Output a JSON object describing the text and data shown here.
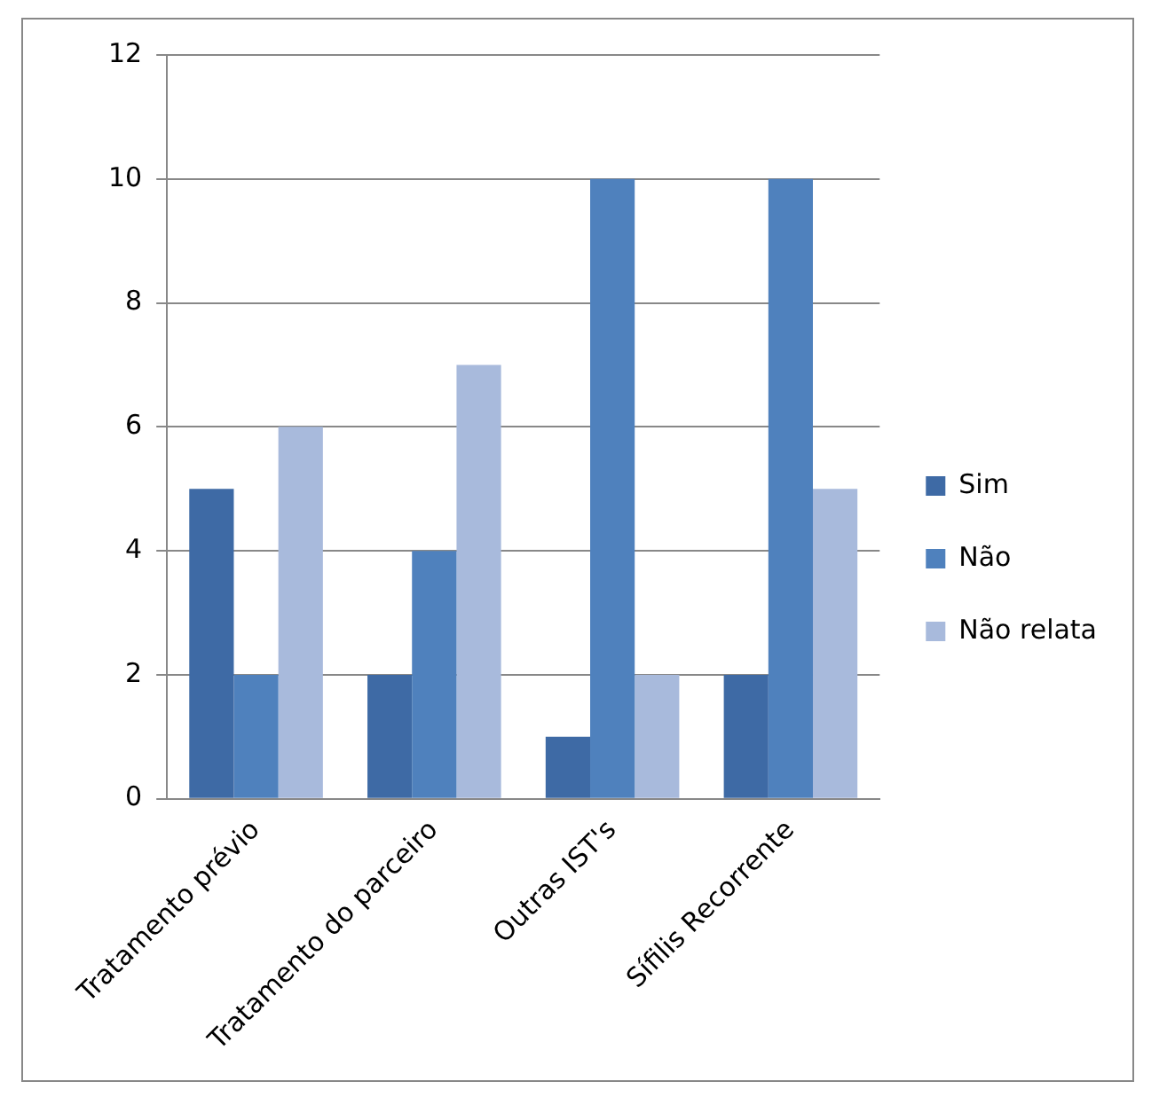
{
  "chart_data": {
    "type": "bar",
    "categories": [
      "Tratamento prévio",
      "Tratamento do parceiro",
      "Outras IST's",
      "Sífilis Recorrente"
    ],
    "series": [
      {
        "name": "Sim",
        "color": "#3e6aa5",
        "values": [
          5,
          2,
          1,
          2
        ]
      },
      {
        "name": "Não",
        "color": "#4f81bd",
        "values": [
          2,
          4,
          10,
          10
        ]
      },
      {
        "name": "Não relata",
        "color": "#a8badc",
        "values": [
          6,
          7,
          2,
          5
        ]
      }
    ],
    "ylim": [
      0,
      12
    ],
    "yticks": [
      0,
      2,
      4,
      6,
      8,
      10,
      12
    ],
    "grid": "y",
    "legend": "right"
  }
}
